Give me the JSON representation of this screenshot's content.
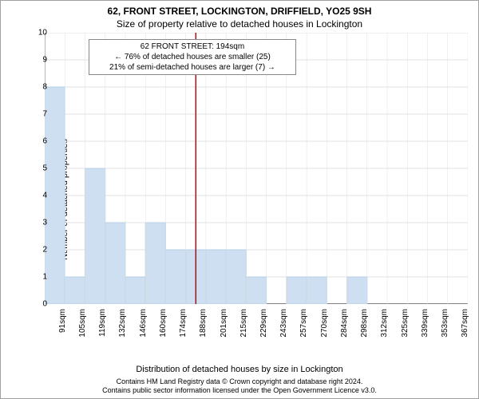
{
  "title_main": "62, FRONT STREET, LOCKINGTON, DRIFFIELD, YO25 9SH",
  "title_sub": "Size of property relative to detached houses in Lockington",
  "y_axis_label": "Number of detached properties",
  "x_axis_label": "Distribution of detached houses by size in Lockington",
  "attribution_line1": "Contains HM Land Registry data © Crown copyright and database right 2024.",
  "attribution_line2": "Contains public sector information licensed under the Open Government Licence v3.0.",
  "chart": {
    "type": "bar",
    "ylim": [
      0,
      10
    ],
    "ytick_step": 1,
    "bar_color": "#cddff0",
    "bar_border_color": "#b8cfe6",
    "grid_color": "#e0e0e0",
    "axis_color": "#000000",
    "marker_line_color": "#d00000",
    "bar_width": 1.0,
    "x_categories": [
      "91sqm",
      "105sqm",
      "119sqm",
      "132sqm",
      "146sqm",
      "160sqm",
      "174sqm",
      "188sqm",
      "201sqm",
      "215sqm",
      "229sqm",
      "243sqm",
      "257sqm",
      "270sqm",
      "284sqm",
      "298sqm",
      "312sqm",
      "325sqm",
      "339sqm",
      "353sqm",
      "367sqm"
    ],
    "values": [
      8,
      1,
      5,
      3,
      1,
      3,
      2,
      2,
      2,
      2,
      1,
      0,
      1,
      1,
      0,
      1,
      0,
      0,
      0,
      0,
      0
    ],
    "marker_x_index": 7.5,
    "annotation": {
      "lines": [
        "62 FRONT STREET: 194sqm",
        "← 76% of detached houses are smaller (25)",
        "21% of semi-detached houses are larger (7) →"
      ]
    }
  }
}
